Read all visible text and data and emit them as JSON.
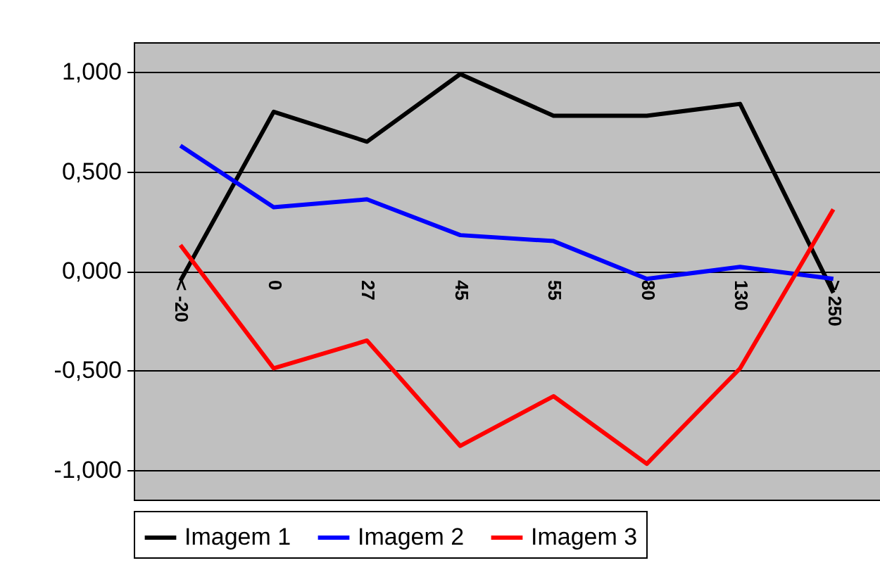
{
  "chart_data": {
    "type": "line",
    "categories": [
      "< -20",
      "0",
      "27",
      "45",
      "55",
      "80",
      "130",
      "> 250"
    ],
    "series": [
      {
        "name": "Imagem 1",
        "color": "#000000",
        "values": [
          -0.05,
          0.8,
          0.65,
          0.99,
          0.78,
          0.78,
          0.84,
          -0.11
        ]
      },
      {
        "name": "Imagem 2",
        "color": "#0000ff",
        "values": [
          0.63,
          0.32,
          0.36,
          0.18,
          0.15,
          -0.04,
          0.02,
          -0.04
        ]
      },
      {
        "name": "Imagem 3",
        "color": "#ff0000",
        "values": [
          0.13,
          -0.49,
          -0.35,
          -0.88,
          -0.63,
          -0.97,
          -0.49,
          0.31
        ]
      }
    ],
    "ylim": [
      -1.15,
      1.15
    ],
    "yticks": [
      {
        "value": -1,
        "label": "-1,000"
      },
      {
        "value": -0.5,
        "label": "-0,500"
      },
      {
        "value": 0,
        "label": "0,000"
      },
      {
        "value": 0.5,
        "label": "0,500"
      },
      {
        "value": 1,
        "label": "1,000"
      }
    ],
    "grid": "y",
    "legend": "bottom",
    "marker": "none",
    "line_style": "solid"
  }
}
